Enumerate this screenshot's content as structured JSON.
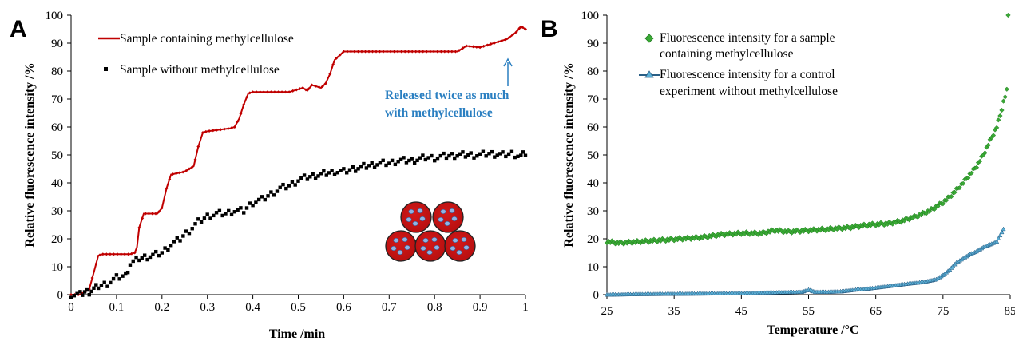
{
  "chart_data": [
    {
      "panel": "A",
      "type": "scatter",
      "xlabel": "Time /min",
      "ylabel": "Relative fluorescence intensity /%",
      "xlim": [
        0,
        1
      ],
      "ylim": [
        0,
        100
      ],
      "xticks": [
        "0",
        "0.1",
        "0.2",
        "0.3",
        "0.4",
        "0.5",
        "0.6",
        "0.7",
        "0.8",
        "0.9",
        "1"
      ],
      "yticks": [
        "0",
        "10",
        "20",
        "30",
        "40",
        "50",
        "60",
        "70",
        "80",
        "90",
        "100"
      ],
      "grid": false,
      "legend_position": "top-left",
      "series": [
        {
          "name": "Sample containing methylcellulose",
          "color": "#c00000",
          "marker": "line-with-small-diamonds",
          "x": [
            0,
            0.02,
            0.04,
            0.05,
            0.06,
            0.07,
            0.13,
            0.14,
            0.145,
            0.15,
            0.16,
            0.19,
            0.2,
            0.21,
            0.22,
            0.25,
            0.26,
            0.27,
            0.28,
            0.29,
            0.3,
            0.35,
            0.36,
            0.37,
            0.38,
            0.39,
            0.4,
            0.48,
            0.5,
            0.51,
            0.52,
            0.53,
            0.55,
            0.56,
            0.57,
            0.58,
            0.6,
            0.85,
            0.87,
            0.9,
            0.92,
            0.94,
            0.96,
            0.98,
            0.99,
            1.0
          ],
          "y": [
            0,
            0,
            2,
            8,
            14,
            14.5,
            14.5,
            15,
            17,
            24,
            29,
            29,
            31,
            38,
            43,
            44,
            45,
            46,
            53,
            58,
            58.5,
            59.5,
            60,
            63,
            68,
            72,
            72.5,
            72.5,
            73.5,
            74,
            73,
            75,
            74,
            75.5,
            79,
            84,
            87,
            87,
            89,
            88.5,
            89.5,
            90.5,
            91.5,
            94,
            96,
            95
          ]
        },
        {
          "name": "Sample without methylcellulose",
          "color": "#000000",
          "marker": "square",
          "x": [
            0,
            0.02,
            0.03,
            0.04,
            0.05,
            0.06,
            0.08,
            0.1,
            0.12,
            0.13,
            0.15,
            0.18,
            0.2,
            0.22,
            0.24,
            0.26,
            0.28,
            0.3,
            0.32,
            0.34,
            0.36,
            0.38,
            0.4,
            0.42,
            0.44,
            0.46,
            0.48,
            0.5,
            0.52,
            0.55,
            0.58,
            0.6,
            0.62,
            0.65,
            0.68,
            0.7,
            0.72,
            0.75,
            0.78,
            0.8,
            0.82,
            0.85,
            0.88,
            0.9,
            0.92,
            0.95,
            0.97,
            0.99,
            1.0
          ],
          "y": [
            0,
            0,
            1,
            1,
            2,
            3,
            4,
            6,
            7,
            11,
            13,
            14,
            15,
            18,
            20,
            23,
            26,
            28,
            29,
            29,
            30,
            30,
            33,
            34,
            36,
            38,
            39,
            41,
            42,
            43,
            44,
            44,
            45,
            46,
            47,
            47,
            48,
            48,
            49,
            49,
            49.5,
            50,
            50,
            50,
            50.5,
            50,
            50.5,
            49.5,
            50.5
          ]
        }
      ],
      "annotations": [
        "Released twice as much",
        "with methylcellulose"
      ]
    },
    {
      "panel": "B",
      "type": "scatter",
      "xlabel": "Temperature /°C",
      "ylabel": "Relative fluorescence intensity /%",
      "xlim": [
        25,
        85
      ],
      "ylim": [
        0,
        100
      ],
      "xticks": [
        "25",
        "35",
        "45",
        "55",
        "65",
        "75",
        "85"
      ],
      "yticks": [
        "0",
        "10",
        "20",
        "30",
        "40",
        "50",
        "60",
        "70",
        "80",
        "90",
        "100"
      ],
      "grid": false,
      "legend_position": "top-left",
      "series": [
        {
          "name": "Fluorescence intensity for a sample containing  methylcellulose",
          "legend_lines": [
            "Fluorescence intensity for a sample",
            "containing  methylcellulose"
          ],
          "color": "#3aa935",
          "marker": "diamond",
          "x": [
            25,
            27,
            30,
            33,
            36,
            39,
            42,
            45,
            48,
            50,
            52,
            55,
            58,
            61,
            64,
            67,
            69,
            71,
            73,
            75,
            76,
            77,
            78,
            79,
            80,
            81,
            82,
            83,
            83.5,
            84,
            84.5
          ],
          "y": [
            19,
            18.5,
            19,
            19.5,
            20,
            20.5,
            21.5,
            22,
            22,
            23,
            22.5,
            23,
            23.5,
            24,
            25,
            25.5,
            26.5,
            28,
            30,
            33,
            35,
            37.5,
            40,
            43,
            46,
            50,
            55,
            60,
            64,
            69,
            73
          ]
        },
        {
          "name": "Fluorescence intensity for a control experiment without methylcellulose",
          "legend_lines": [
            "Fluorescence intensity for a control",
            "experiment without methylcellulose"
          ],
          "color": "#2a7fa6",
          "marker": "triangle-line",
          "x": [
            25,
            30,
            35,
            40,
            45,
            50,
            54,
            55,
            56,
            58,
            60,
            62,
            64,
            66,
            68,
            70,
            72,
            74,
            75,
            76,
            77,
            78,
            79,
            80,
            81,
            82,
            83,
            84
          ],
          "y": [
            0,
            0.2,
            0.3,
            0.4,
            0.5,
            0.8,
            1,
            1.8,
            1,
            1,
            1.2,
            1.8,
            2.2,
            2.8,
            3.4,
            4,
            4.5,
            5.5,
            7,
            9,
            11.5,
            13,
            14.5,
            15.5,
            17,
            18,
            19,
            23.5
          ]
        }
      ],
      "extra_points": [
        {
          "series": 0,
          "x": 84.7,
          "y": 100
        }
      ]
    }
  ],
  "figure": {
    "panel_a_letter": "A",
    "panel_b_letter": "B",
    "inset_label": "methylcellulose-particle-illustration"
  }
}
